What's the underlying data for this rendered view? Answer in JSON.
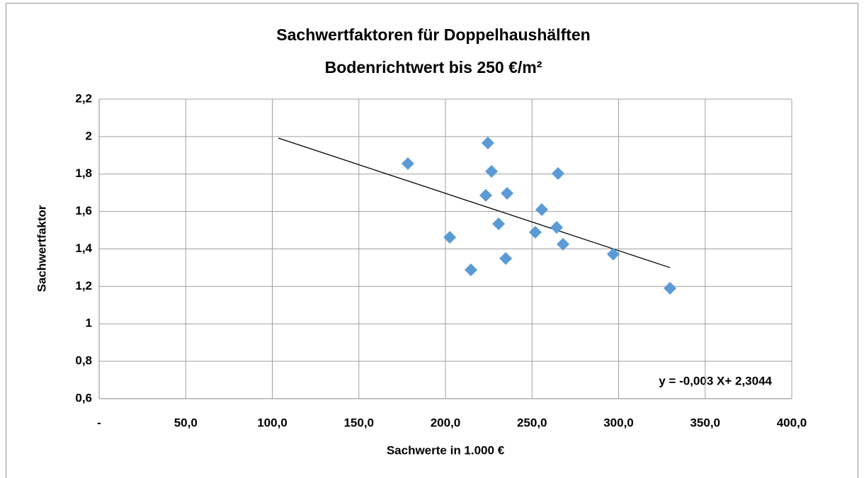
{
  "chart_data": {
    "type": "scatter",
    "title": [
      "Sachwertfaktoren für Doppelhaushälften",
      "Bodenrichtwert bis 250 €/m²"
    ],
    "xlabel": "Sachwerte in 1.000 €",
    "ylabel": "Sachwertfaktor",
    "annotation": "y = -0,003 X+ 2,3044",
    "series": [
      {
        "color": "#5b9bd5",
        "x": [
          178.3,
          224.5,
          226.6,
          223.3,
          235.6,
          265.0,
          255.6,
          230.7,
          251.9,
          264.2,
          267.9,
          202.5,
          214.7,
          234.8,
          296.9,
          329.7
        ],
        "values": [
          1.856,
          1.966,
          1.814,
          1.686,
          1.697,
          1.803,
          1.61,
          1.534,
          1.489,
          1.515,
          1.425,
          1.462,
          1.288,
          1.349,
          1.372,
          1.19
        ]
      }
    ],
    "trendline": {
      "color": "#000000",
      "x": [
        103.5,
        329.7
      ],
      "values": [
        1.992,
        1.3
      ]
    },
    "xlim": [
      0,
      400
    ],
    "xticks": [
      {
        "value": 0,
        "label": "-"
      },
      {
        "value": 50,
        "label": "50,0"
      },
      {
        "value": 100,
        "label": "100,0"
      },
      {
        "value": 150,
        "label": "150,0"
      },
      {
        "value": 200,
        "label": "200,0"
      },
      {
        "value": 250,
        "label": "250,0"
      },
      {
        "value": 300,
        "label": "300,0"
      },
      {
        "value": 350,
        "label": "350,0"
      },
      {
        "value": 400,
        "label": "400,0"
      }
    ],
    "ylim": [
      0.6,
      2.2
    ],
    "yticks": [
      {
        "value": 0.6,
        "label": "0,6"
      },
      {
        "value": 0.8,
        "label": "0,8"
      },
      1,
      {
        "value": 1.2,
        "label": "1,2"
      },
      {
        "value": 1.4,
        "label": "1,4"
      },
      {
        "value": 1.6,
        "label": "1,6"
      },
      {
        "value": 1.8,
        "label": "1,8"
      },
      2,
      {
        "value": 2.2,
        "label": "2,2"
      }
    ],
    "grid": true
  }
}
